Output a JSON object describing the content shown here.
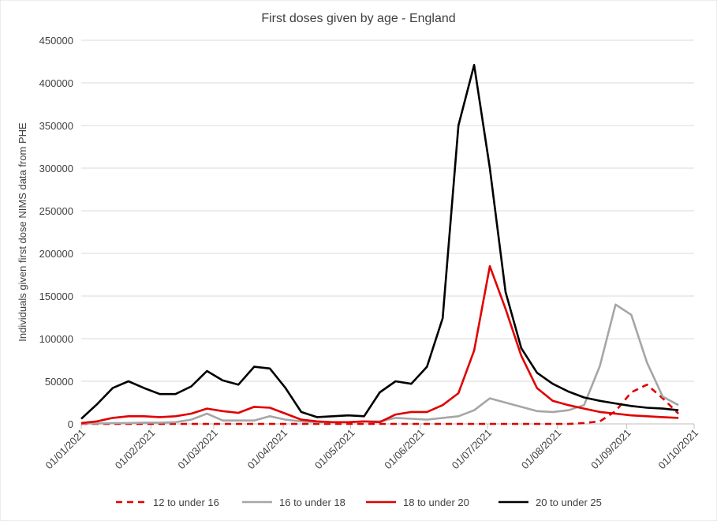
{
  "chart_data": {
    "type": "line",
    "title": "First doses given by age - England",
    "ylabel": "Individuals given first dose NIMS data from PHE",
    "xlabel": "",
    "ylim": [
      0,
      450000
    ],
    "yticks": [
      "0",
      "50000",
      "100000",
      "150000",
      "200000",
      "250000",
      "300000",
      "350000",
      "400000",
      "450000"
    ],
    "xticks": [
      "01/01/2021",
      "01/02/2021",
      "01/03/2021",
      "01/04/2021",
      "01/05/2021",
      "01/06/2021",
      "01/07/2021",
      "01/08/2021",
      "01/09/2021",
      "01/10/2021"
    ],
    "x_range": [
      "2021-01-01",
      "2021-10-01"
    ],
    "grid": "horizontal",
    "legend_position": "bottom",
    "x": [
      "2021-01-01",
      "2021-01-08",
      "2021-01-15",
      "2021-01-22",
      "2021-01-29",
      "2021-02-05",
      "2021-02-12",
      "2021-02-19",
      "2021-02-26",
      "2021-03-05",
      "2021-03-12",
      "2021-03-19",
      "2021-03-26",
      "2021-04-02",
      "2021-04-09",
      "2021-04-16",
      "2021-04-23",
      "2021-04-30",
      "2021-05-07",
      "2021-05-14",
      "2021-05-21",
      "2021-05-28",
      "2021-06-04",
      "2021-06-11",
      "2021-06-18",
      "2021-06-25",
      "2021-07-02",
      "2021-07-09",
      "2021-07-16",
      "2021-07-23",
      "2021-07-30",
      "2021-08-06",
      "2021-08-13",
      "2021-08-20",
      "2021-08-27",
      "2021-09-03",
      "2021-09-10",
      "2021-09-17",
      "2021-09-24"
    ],
    "series": [
      {
        "name": "12 to under 16",
        "color": "#e00000",
        "dash": true,
        "values": [
          0,
          0,
          0,
          0,
          0,
          0,
          0,
          0,
          0,
          0,
          0,
          0,
          0,
          0,
          0,
          0,
          0,
          0,
          0,
          0,
          0,
          0,
          0,
          0,
          0,
          0,
          0,
          0,
          0,
          0,
          0,
          0,
          1000,
          3000,
          15000,
          37000,
          46000,
          30000,
          12000
        ]
      },
      {
        "name": "16 to under 18",
        "color": "#a6a6a6",
        "dash": false,
        "values": [
          500,
          500,
          1000,
          1000,
          1500,
          1500,
          2000,
          5000,
          12000,
          4000,
          4000,
          4000,
          9000,
          5000,
          3000,
          2000,
          2000,
          2000,
          3000,
          3000,
          7000,
          6000,
          5000,
          7000,
          9000,
          16000,
          30000,
          25000,
          20000,
          15000,
          14000,
          16000,
          22000,
          68000,
          140000,
          128000,
          72000,
          32000,
          22000
        ]
      },
      {
        "name": "18  to under 20",
        "color": "#e00000",
        "dash": false,
        "values": [
          1000,
          3000,
          7000,
          9000,
          9000,
          8000,
          9000,
          12000,
          18000,
          15000,
          13000,
          20000,
          19000,
          12000,
          5000,
          3000,
          2000,
          2000,
          3000,
          2000,
          11000,
          14000,
          14000,
          22000,
          36000,
          86000,
          185000,
          135000,
          80000,
          42000,
          27000,
          22000,
          18000,
          14000,
          12000,
          10000,
          9000,
          8000,
          7000
        ]
      },
      {
        "name": "20 to under 25",
        "color": "#000000",
        "dash": false,
        "values": [
          6000,
          23000,
          42000,
          50000,
          42000,
          35000,
          35000,
          44000,
          62000,
          51000,
          46000,
          67000,
          65000,
          42000,
          14000,
          8000,
          9000,
          10000,
          9000,
          37000,
          50000,
          47000,
          67000,
          124000,
          350000,
          421000,
          300000,
          155000,
          89000,
          60000,
          47000,
          38000,
          31000,
          27000,
          24000,
          21000,
          19000,
          18000,
          16000
        ]
      }
    ]
  }
}
